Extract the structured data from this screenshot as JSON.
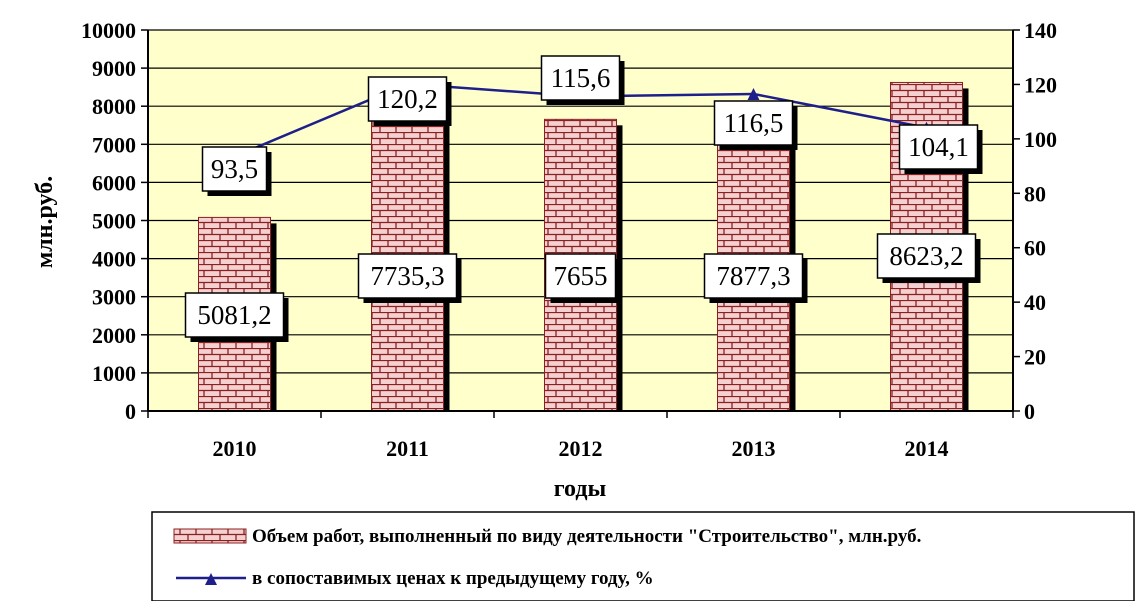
{
  "chart_data": {
    "type": "bar",
    "categories": [
      "2010",
      "2011",
      "2012",
      "2013",
      "2014"
    ],
    "series": [
      {
        "name": "Объем работ, выполненный по виду деятельности \"Строительство\", млн.руб.",
        "type": "bar",
        "axis": "left",
        "values": [
          5081.2,
          7735.3,
          7655,
          7877.3,
          8623.2
        ],
        "labels": [
          "5081,2",
          "7735,3",
          "7655",
          "7877,3",
          "8623,2"
        ]
      },
      {
        "name": "в сопоставимых ценах к предыдущему году, %",
        "type": "line",
        "axis": "right",
        "values": [
          93.5,
          120.2,
          115.6,
          116.5,
          104.1
        ],
        "labels": [
          "93,5",
          "120,2",
          "115,6",
          "116,5",
          "104,1"
        ]
      }
    ],
    "xlabel": "годы",
    "ylabel": "млн.руб.",
    "ylim": [
      0,
      10000
    ],
    "y2lim": [
      0,
      140
    ],
    "yticks": [
      "0",
      "1000",
      "2000",
      "3000",
      "4000",
      "5000",
      "6000",
      "7000",
      "8000",
      "9000",
      "10000"
    ],
    "y2ticks": [
      "0",
      "20",
      "40",
      "60",
      "80",
      "100",
      "120",
      "140"
    ],
    "grid": true,
    "legend_position": "bottom",
    "colors": {
      "plot_bg": "#ffffcc",
      "bar_fill": "#f4d0d0",
      "bar_pattern_lines": "#8b2020",
      "line": "#1f1f8c",
      "shadow": "#000000"
    }
  }
}
